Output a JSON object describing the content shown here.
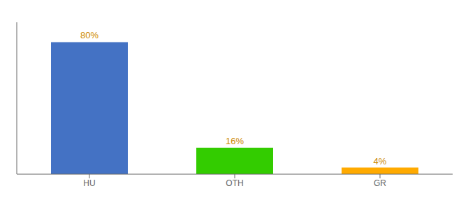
{
  "chart_data": {
    "type": "bar",
    "categories": [
      "HU",
      "OTH",
      "GR"
    ],
    "values": [
      80,
      16,
      4
    ],
    "value_labels": [
      "80%",
      "16%",
      "4%"
    ],
    "colors": [
      "#4472c4",
      "#33cc00",
      "#ffaa00"
    ],
    "ylim": [
      0,
      92
    ],
    "data_labels": true,
    "tick_labels": "x",
    "grid": false
  }
}
